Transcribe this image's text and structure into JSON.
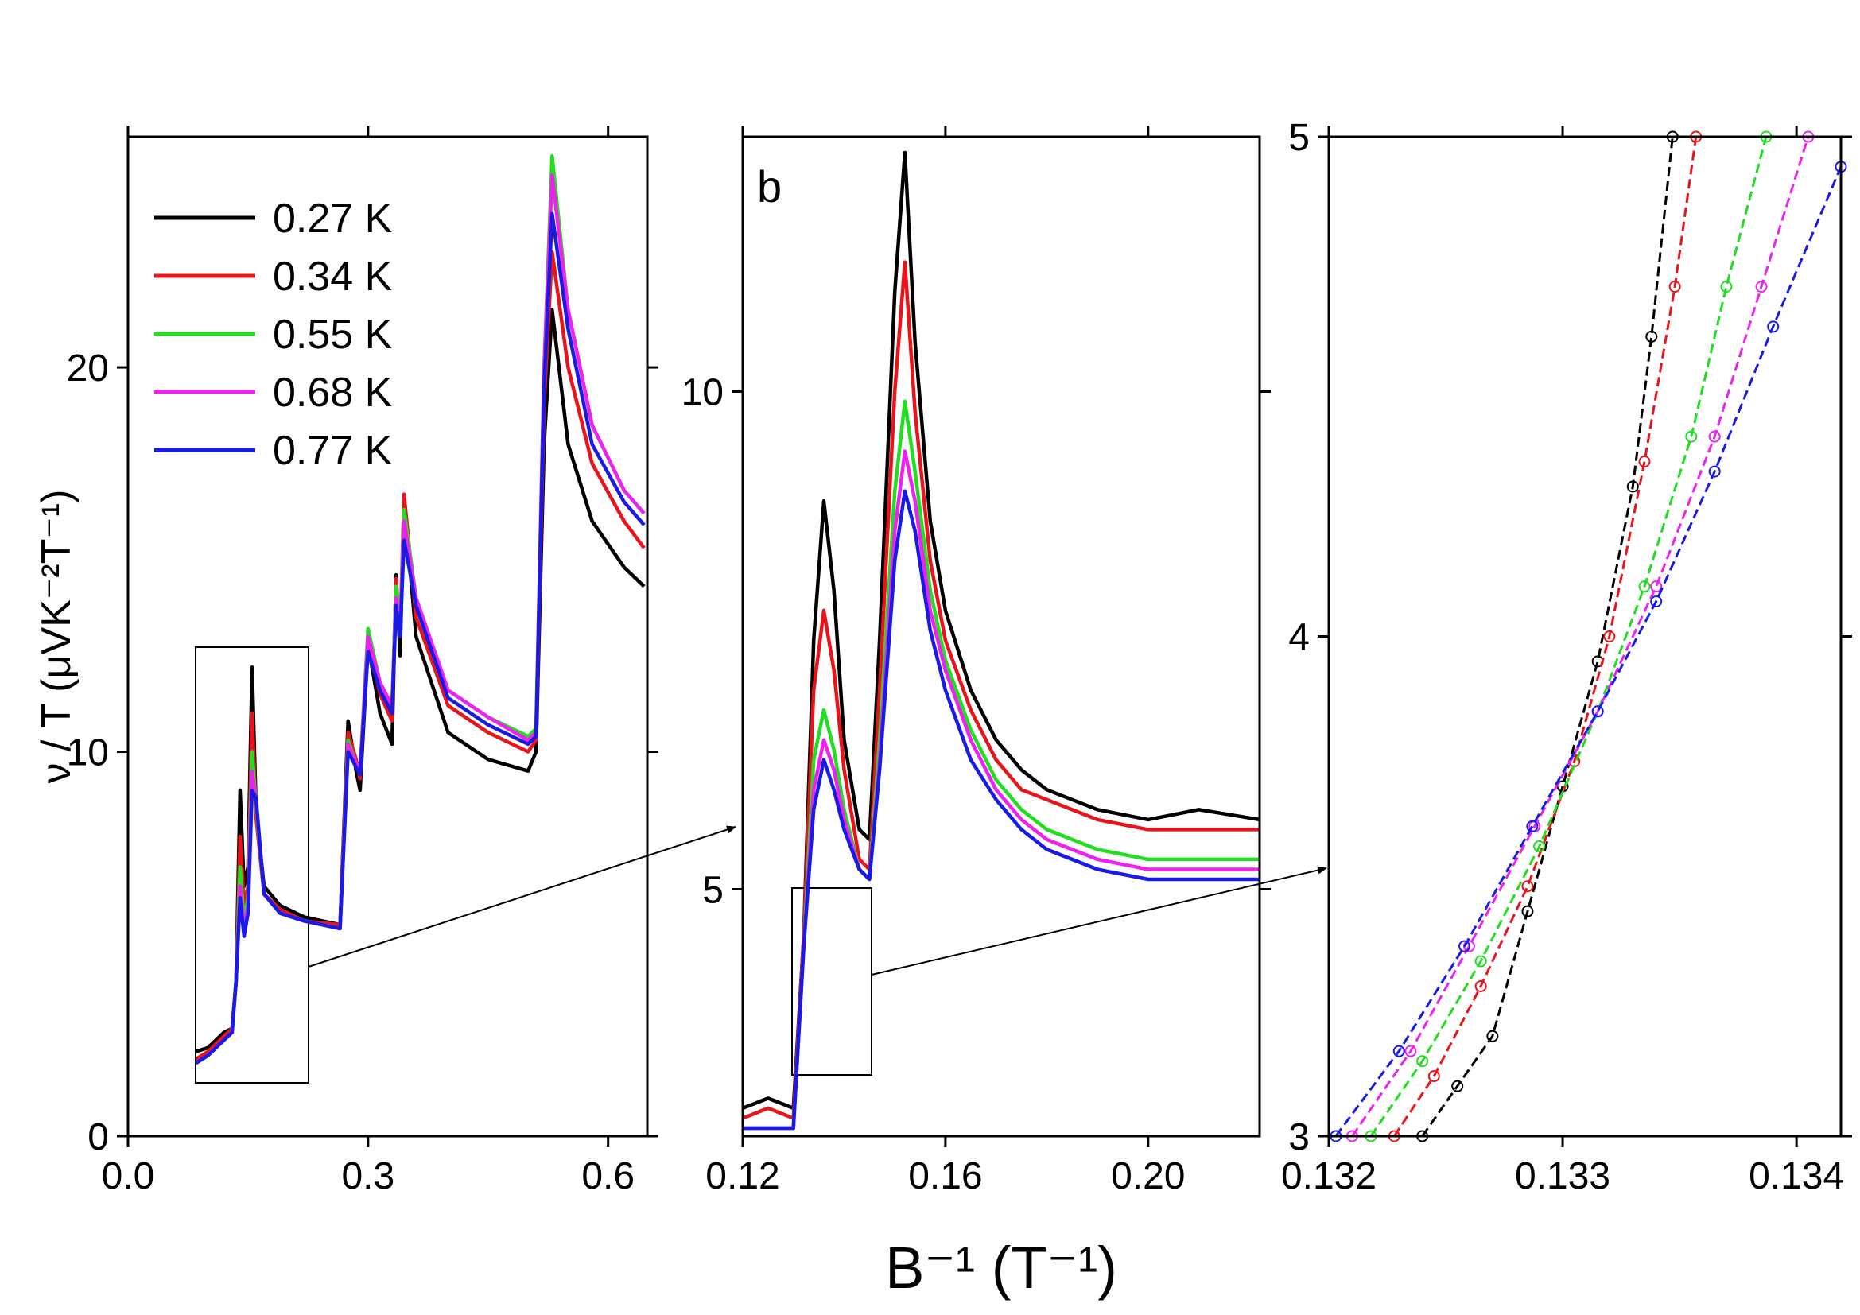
{
  "chart_data": [
    {
      "type": "line",
      "ylabel": "ν / T (μVK⁻²T⁻¹)",
      "legend": "upper left",
      "xlim": [
        0,
        0.649
      ],
      "ylim": [
        0,
        26.0
      ],
      "xticks": [
        {
          "value": 0,
          "label": "0.0"
        },
        0.3,
        0.6
      ],
      "yticks": [
        0,
        10,
        20
      ],
      "x": [
        0.085,
        0.1,
        0.12,
        0.13,
        0.135,
        0.14,
        0.145,
        0.15,
        0.155,
        0.16,
        0.17,
        0.19,
        0.22,
        0.265,
        0.275,
        0.285,
        0.29,
        0.3,
        0.315,
        0.33,
        0.335,
        0.34,
        0.345,
        0.36,
        0.4,
        0.45,
        0.5,
        0.51,
        0.52,
        0.53,
        0.55,
        0.58,
        0.62,
        0.645
      ],
      "series": [
        {
          "name": "0.27 K",
          "color": "#000000",
          "values": [
            2.2,
            2.3,
            2.7,
            2.8,
            4.0,
            9.0,
            6.5,
            7.0,
            12.2,
            8.5,
            6.5,
            6.0,
            5.7,
            5.5,
            10.8,
            9.5,
            9.0,
            12.8,
            11.0,
            10.2,
            14.6,
            12.5,
            16.5,
            13.0,
            10.5,
            9.8,
            9.5,
            10.0,
            18.0,
            21.5,
            18.0,
            16.0,
            14.8,
            14.3
          ]
        },
        {
          "name": "0.34 K",
          "color": "#e8141b",
          "values": [
            2.0,
            2.2,
            2.6,
            2.8,
            4.0,
            7.8,
            6.0,
            6.5,
            11.0,
            8.3,
            6.3,
            5.9,
            5.6,
            5.5,
            10.5,
            9.8,
            9.3,
            12.9,
            11.5,
            10.8,
            14.5,
            13.0,
            16.7,
            13.5,
            11.2,
            10.5,
            10.0,
            10.3,
            19.0,
            23.0,
            20.0,
            17.5,
            16.0,
            15.3
          ]
        },
        {
          "name": "0.55 K",
          "color": "#22dd22",
          "values": [
            1.9,
            2.1,
            2.5,
            2.7,
            4.0,
            7.0,
            5.6,
            6.2,
            10.0,
            8.6,
            6.3,
            5.8,
            5.6,
            5.4,
            10.3,
            9.7,
            9.5,
            13.2,
            11.8,
            11.2,
            14.3,
            13.2,
            16.3,
            14.0,
            11.6,
            10.9,
            10.4,
            10.6,
            20.0,
            25.5,
            21.5,
            18.5,
            16.8,
            16.2
          ]
        },
        {
          "name": "0.68  K",
          "color": "#ee22ee",
          "values": [
            1.9,
            2.1,
            2.5,
            2.7,
            4.0,
            6.5,
            5.4,
            6.0,
            9.5,
            8.7,
            6.3,
            5.8,
            5.6,
            5.4,
            10.2,
            9.7,
            9.5,
            13.0,
            11.8,
            11.2,
            14.0,
            13.2,
            16.0,
            14.0,
            11.6,
            10.9,
            10.3,
            10.5,
            20.0,
            25.0,
            21.5,
            18.5,
            16.8,
            16.2
          ]
        },
        {
          "name": "0.77 K",
          "color": "#1a1ae6",
          "values": [
            1.9,
            2.1,
            2.5,
            2.7,
            4.0,
            6.2,
            5.2,
            5.8,
            9.0,
            8.8,
            6.3,
            5.8,
            5.6,
            5.4,
            10.0,
            9.6,
            9.4,
            12.6,
            11.6,
            11.0,
            13.8,
            13.0,
            15.5,
            13.8,
            11.4,
            10.7,
            10.2,
            10.4,
            19.5,
            24.0,
            21.0,
            18.0,
            16.5,
            15.9
          ]
        }
      ]
    },
    {
      "type": "line",
      "annotation": "b",
      "xlabel": "B⁻¹ (T⁻¹)",
      "xlim": [
        0.12,
        0.222
      ],
      "ylim": [
        2.52,
        12.56
      ],
      "xticks": [
        0.12,
        0.16,
        {
          "value": 0.2,
          "label": "0.20"
        }
      ],
      "yticks": [
        5,
        10
      ],
      "x": [
        0.12,
        0.125,
        0.13,
        0.132,
        0.134,
        0.136,
        0.138,
        0.14,
        0.143,
        0.145,
        0.147,
        0.15,
        0.152,
        0.154,
        0.157,
        0.16,
        0.165,
        0.17,
        0.175,
        0.18,
        0.19,
        0.2,
        0.21,
        0.222
      ],
      "series": [
        {
          "color": "#000000",
          "values": [
            2.8,
            2.9,
            2.8,
            4.5,
            7.5,
            8.9,
            8.0,
            6.5,
            5.6,
            5.5,
            7.5,
            11.0,
            12.4,
            10.5,
            8.7,
            7.8,
            7.0,
            6.5,
            6.2,
            6.0,
            5.8,
            5.7,
            5.8,
            5.7
          ]
        },
        {
          "color": "#e8141b",
          "values": [
            2.7,
            2.8,
            2.7,
            4.5,
            7.0,
            7.8,
            7.2,
            6.2,
            5.3,
            5.2,
            7.0,
            10.0,
            11.3,
            9.8,
            8.3,
            7.5,
            6.8,
            6.3,
            6.0,
            5.9,
            5.7,
            5.6,
            5.6,
            5.6
          ]
        },
        {
          "color": "#22dd22",
          "values": [
            2.6,
            2.6,
            2.6,
            4.4,
            6.3,
            6.8,
            6.4,
            5.8,
            5.2,
            5.1,
            6.5,
            9.0,
            9.9,
            9.2,
            8.0,
            7.3,
            6.6,
            6.1,
            5.8,
            5.6,
            5.4,
            5.3,
            5.3,
            5.3
          ]
        },
        {
          "color": "#ee22ee",
          "values": [
            2.6,
            2.6,
            2.6,
            4.4,
            6.0,
            6.5,
            6.2,
            5.7,
            5.2,
            5.1,
            6.3,
            8.6,
            9.4,
            8.9,
            7.8,
            7.2,
            6.5,
            6.0,
            5.7,
            5.5,
            5.3,
            5.2,
            5.2,
            5.2
          ]
        },
        {
          "color": "#1a1ae6",
          "values": [
            2.6,
            2.6,
            2.6,
            4.4,
            5.8,
            6.3,
            6.0,
            5.6,
            5.2,
            5.1,
            6.2,
            8.3,
            9.0,
            8.6,
            7.6,
            7.0,
            6.3,
            5.9,
            5.6,
            5.4,
            5.2,
            5.1,
            5.1,
            5.1
          ]
        }
      ]
    },
    {
      "type": "line",
      "markers": true,
      "line_style": "dashed",
      "xlim": [
        0.132,
        0.13419
      ],
      "ylim": [
        3,
        5
      ],
      "xticks": [
        0.132,
        0.133,
        0.134
      ],
      "yticks": [
        3,
        4,
        5
      ],
      "series": [
        {
          "color": "#000000",
          "x": [
            0.1324,
            0.13255,
            0.1327,
            0.13285,
            0.133,
            0.13315,
            0.1333,
            0.13338,
            0.13347
          ],
          "values": [
            3.0,
            3.1,
            3.2,
            3.45,
            3.7,
            3.95,
            4.3,
            4.6,
            5.0
          ]
        },
        {
          "color": "#e8141b",
          "x": [
            0.13228,
            0.13245,
            0.13265,
            0.13285,
            0.13305,
            0.1332,
            0.13335,
            0.13348,
            0.13357
          ],
          "values": [
            3.0,
            3.12,
            3.3,
            3.5,
            3.75,
            4.0,
            4.35,
            4.7,
            5.0
          ]
        },
        {
          "color": "#22dd22",
          "x": [
            0.13218,
            0.1324,
            0.13265,
            0.1329,
            0.13315,
            0.13335,
            0.13355,
            0.1337,
            0.13387
          ],
          "values": [
            3.0,
            3.15,
            3.35,
            3.58,
            3.85,
            4.1,
            4.4,
            4.7,
            5.0
          ]
        },
        {
          "color": "#ee22ee",
          "x": [
            0.1321,
            0.13235,
            0.1326,
            0.13288,
            0.13315,
            0.1334,
            0.13365,
            0.13385,
            0.13405
          ],
          "values": [
            3.0,
            3.17,
            3.38,
            3.62,
            3.85,
            4.1,
            4.4,
            4.7,
            5.0
          ]
        },
        {
          "color": "#1a1ae6",
          "x": [
            0.13203,
            0.1323,
            0.13258,
            0.13287,
            0.13315,
            0.1334,
            0.13365,
            0.1339,
            0.13419
          ],
          "values": [
            3.0,
            3.17,
            3.38,
            3.62,
            3.85,
            4.07,
            4.33,
            4.62,
            4.94
          ]
        }
      ]
    }
  ]
}
